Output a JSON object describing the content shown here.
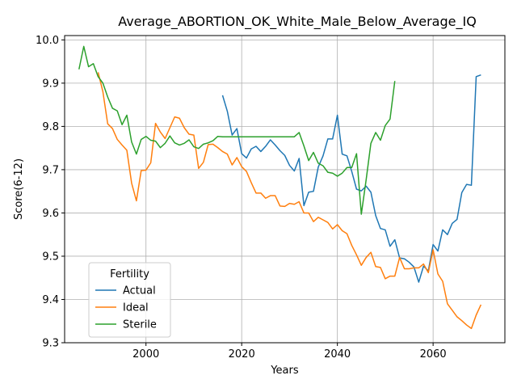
{
  "chart_data": {
    "type": "line",
    "title": "Average_ABORTION_OK_White_Male_Below_Average_IQ",
    "xlabel": "Years",
    "ylabel": "Score(6-12)",
    "xlim": [
      1983,
      2075
    ],
    "ylim": [
      9.3,
      10.01
    ],
    "xticks": [
      2000,
      2020,
      2040,
      2060
    ],
    "yticks": [
      9.3,
      9.4,
      9.5,
      9.6,
      9.7,
      9.8,
      9.9,
      10.0
    ],
    "grid": true,
    "legend": {
      "title": "Fertility",
      "placement": "lower-left"
    },
    "series": [
      {
        "name": "Actual",
        "color": "#1f77b4",
        "x": [
          2016,
          2017,
          2018,
          2019,
          2020,
          2021,
          2022,
          2023,
          2024,
          2025,
          2026,
          2027,
          2028,
          2029,
          2030,
          2031,
          2032,
          2033,
          2034,
          2035,
          2036,
          2037,
          2038,
          2039,
          2040,
          2041,
          2042,
          2043,
          2044,
          2045,
          2046,
          2047,
          2048,
          2049,
          2050,
          2051,
          2052,
          2053,
          2054,
          2055,
          2056,
          2057,
          2058,
          2059,
          2060,
          2061,
          2062,
          2063,
          2064,
          2065,
          2066,
          2067,
          2068,
          2069,
          2070
        ],
        "y": [
          9.872,
          9.835,
          9.78,
          9.795,
          9.737,
          9.727,
          9.748,
          9.754,
          9.742,
          9.754,
          9.769,
          9.757,
          9.744,
          9.733,
          9.71,
          9.697,
          9.726,
          9.617,
          9.648,
          9.65,
          9.706,
          9.732,
          9.771,
          9.771,
          9.826,
          9.736,
          9.732,
          9.696,
          9.655,
          9.651,
          9.662,
          9.648,
          9.594,
          9.564,
          9.561,
          9.523,
          9.538,
          9.496,
          9.494,
          9.486,
          9.475,
          9.44,
          9.477,
          9.466,
          9.527,
          9.512,
          9.561,
          9.55,
          9.576,
          9.585,
          9.647,
          9.666,
          9.664,
          9.915,
          9.919
        ]
      },
      {
        "name": "Ideal",
        "color": "#ff7f0e",
        "x": [
          1990,
          1991,
          1992,
          1993,
          1994,
          1995,
          1996,
          1997,
          1998,
          1999,
          2000,
          2001,
          2002,
          2003,
          2004,
          2005,
          2006,
          2007,
          2008,
          2009,
          2010,
          2011,
          2012,
          2013,
          2014,
          2015,
          2016,
          2017,
          2018,
          2019,
          2020,
          2021,
          2022,
          2023,
          2024,
          2025,
          2026,
          2027,
          2028,
          2029,
          2030,
          2031,
          2032,
          2033,
          2034,
          2035,
          2036,
          2037,
          2038,
          2039,
          2040,
          2041,
          2042,
          2043,
          2044,
          2045,
          2046,
          2047,
          2048,
          2049,
          2050,
          2051,
          2052,
          2053,
          2054,
          2055,
          2056,
          2057,
          2058,
          2059,
          2060,
          2061,
          2062,
          2063,
          2064,
          2065,
          2066,
          2067,
          2068,
          2069,
          2070
        ],
        "y": [
          9.925,
          9.88,
          9.806,
          9.795,
          9.77,
          9.757,
          9.745,
          9.669,
          9.628,
          9.698,
          9.699,
          9.716,
          9.807,
          9.787,
          9.772,
          9.797,
          9.822,
          9.819,
          9.797,
          9.782,
          9.78,
          9.703,
          9.717,
          9.758,
          9.759,
          9.751,
          9.742,
          9.736,
          9.711,
          9.728,
          9.707,
          9.696,
          9.67,
          9.646,
          9.646,
          9.634,
          9.64,
          9.64,
          9.616,
          9.615,
          9.622,
          9.62,
          9.626,
          9.6,
          9.6,
          9.58,
          9.59,
          9.584,
          9.578,
          9.563,
          9.573,
          9.559,
          9.552,
          9.525,
          9.503,
          9.479,
          9.497,
          9.509,
          9.476,
          9.474,
          9.448,
          9.454,
          9.454,
          9.497,
          9.471,
          9.471,
          9.473,
          9.473,
          9.482,
          9.462,
          9.515,
          9.459,
          9.442,
          9.39,
          9.375,
          9.36,
          9.351,
          9.341,
          9.333,
          9.364,
          9.388
        ]
      },
      {
        "name": "Sterile",
        "color": "#2ca02c",
        "x": [
          1986,
          1987,
          1988,
          1989,
          1990,
          1991,
          1992,
          1993,
          1994,
          1995,
          1996,
          1997,
          1998,
          1999,
          2000,
          2001,
          2002,
          2003,
          2004,
          2005,
          2006,
          2007,
          2008,
          2009,
          2010,
          2011,
          2012,
          2013,
          2014,
          2015,
          2016,
          2017,
          2018,
          2019,
          2020,
          2021,
          2022,
          2023,
          2024,
          2025,
          2026,
          2027,
          2028,
          2029,
          2030,
          2031,
          2032,
          2033,
          2034,
          2035,
          2036,
          2037,
          2038,
          2039,
          2040,
          2041,
          2042,
          2043,
          2044,
          2045,
          2046,
          2047,
          2048,
          2049,
          2050,
          2051,
          2052
        ],
        "y": [
          9.932,
          9.985,
          9.938,
          9.945,
          9.915,
          9.9,
          9.868,
          9.842,
          9.836,
          9.804,
          9.826,
          9.764,
          9.736,
          9.77,
          9.777,
          9.768,
          9.766,
          9.751,
          9.761,
          9.778,
          9.762,
          9.757,
          9.761,
          9.769,
          9.753,
          9.749,
          9.759,
          9.762,
          9.767,
          9.777,
          9.776,
          9.776,
          9.776,
          9.776,
          9.776,
          9.776,
          9.776,
          9.776,
          9.776,
          9.776,
          9.776,
          9.776,
          9.776,
          9.776,
          9.776,
          9.776,
          9.786,
          9.755,
          9.721,
          9.74,
          9.715,
          9.709,
          9.694,
          9.692,
          9.685,
          9.692,
          9.705,
          9.705,
          9.737,
          9.597,
          9.676,
          9.761,
          9.786,
          9.768,
          9.802,
          9.817,
          9.905
        ]
      }
    ]
  }
}
